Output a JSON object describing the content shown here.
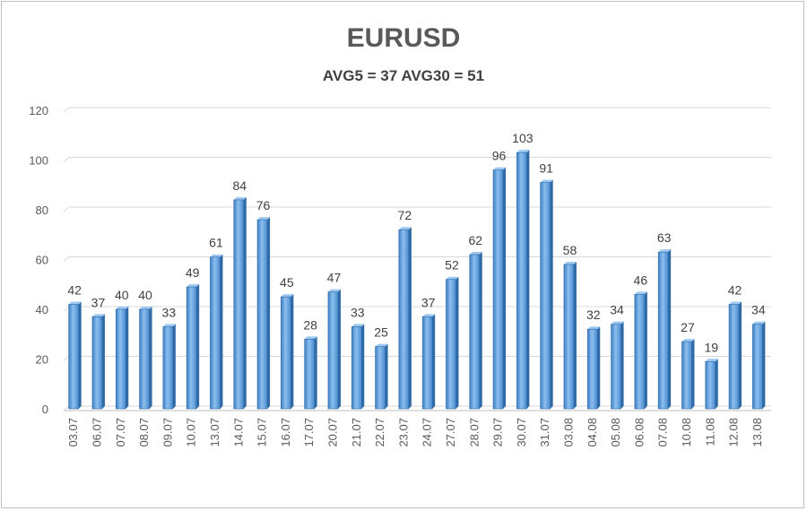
{
  "chart_data": {
    "type": "bar",
    "title": "EURUSD",
    "subtitle": "AVG5 = 37 AVG30 = 51",
    "xlabel": "",
    "ylabel": "",
    "ylim": [
      0,
      120
    ],
    "yticks": [
      0,
      20,
      40,
      60,
      80,
      100,
      120
    ],
    "grid": true,
    "legend": "none",
    "bar_color": "#5b9bd5",
    "categories": [
      "03.07",
      "06.07",
      "07.07",
      "08.07",
      "09.07",
      "10.07",
      "13.07",
      "14.07",
      "15.07",
      "16.07",
      "17.07",
      "20.07",
      "21.07",
      "22.07",
      "23.07",
      "24.07",
      "27.07",
      "28.07",
      "29.07",
      "30.07",
      "31.07",
      "03.08",
      "04.08",
      "05.08",
      "06.08",
      "07.08",
      "10.08",
      "11.08",
      "12.08",
      "13.08"
    ],
    "values": [
      42,
      37,
      40,
      40,
      33,
      49,
      61,
      84,
      76,
      45,
      28,
      47,
      33,
      25,
      72,
      37,
      52,
      62,
      96,
      103,
      91,
      58,
      32,
      34,
      46,
      63,
      27,
      19,
      42,
      34
    ]
  }
}
